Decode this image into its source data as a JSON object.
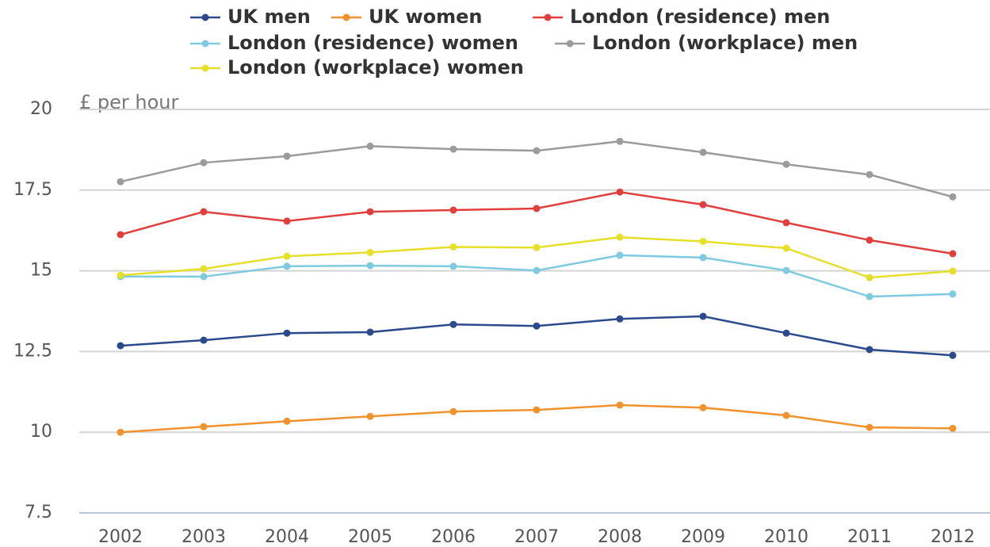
{
  "chart_data": {
    "type": "line",
    "y_label": "£ per hour",
    "categories": [
      "2002",
      "2003",
      "2004",
      "2005",
      "2006",
      "2007",
      "2008",
      "2009",
      "2010",
      "2011",
      "2012"
    ],
    "series": [
      {
        "name": "UK men",
        "color": "#2b4a8c",
        "values": [
          12.68,
          12.85,
          13.07,
          13.1,
          13.34,
          13.29,
          13.51,
          13.59,
          13.07,
          12.56,
          12.38
        ]
      },
      {
        "name": "UK women",
        "color": "#f0922e",
        "values": [
          10.0,
          10.17,
          10.34,
          10.49,
          10.64,
          10.69,
          10.84,
          10.76,
          10.52,
          10.15,
          10.12
        ]
      },
      {
        "name": "London (residence) men",
        "color": "#e0403d",
        "values": [
          16.12,
          16.83,
          16.54,
          16.83,
          16.88,
          16.93,
          17.44,
          17.05,
          16.49,
          15.95,
          15.53
        ]
      },
      {
        "name": "London (residence) women",
        "color": "#7ecae0",
        "values": [
          14.82,
          14.82,
          15.14,
          15.16,
          15.14,
          15.01,
          15.48,
          15.41,
          15.01,
          14.2,
          14.28
        ]
      },
      {
        "name": "London (workplace) men",
        "color": "#9b9b9b",
        "values": [
          17.76,
          18.35,
          18.55,
          18.86,
          18.77,
          18.72,
          19.01,
          18.67,
          18.3,
          17.98,
          17.29
        ]
      },
      {
        "name": "London (workplace) women",
        "color": "#e6e02a",
        "values": [
          14.86,
          15.06,
          15.45,
          15.57,
          15.74,
          15.72,
          16.04,
          15.91,
          15.7,
          14.79,
          14.99
        ]
      }
    ],
    "ylim": [
      7.5,
      20
    ],
    "yticks": [
      7.5,
      10,
      12.5,
      15,
      17.5,
      20
    ],
    "grid": true,
    "legend": "top"
  }
}
